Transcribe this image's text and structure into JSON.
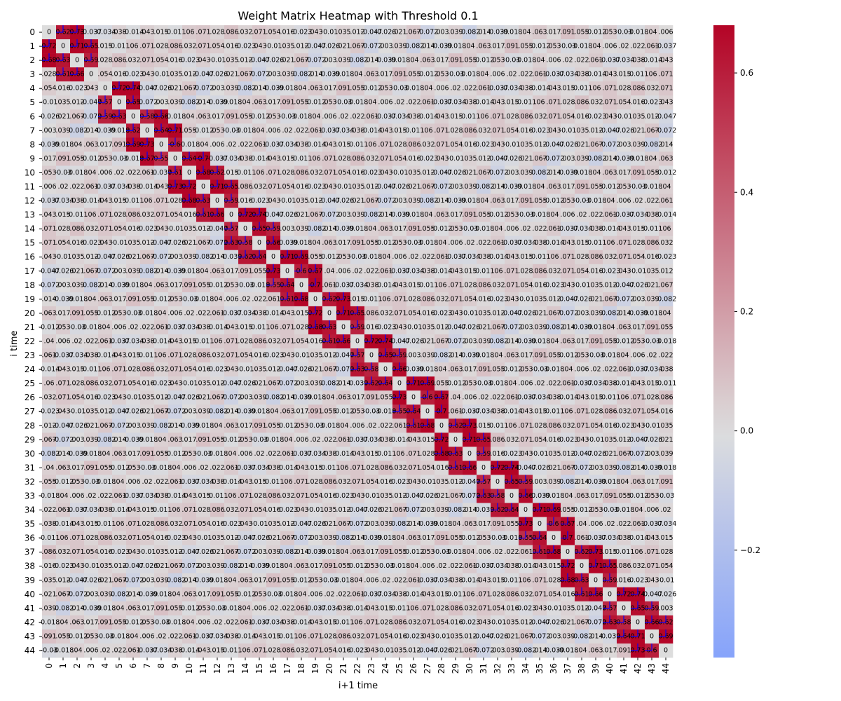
{
  "chart_data": {
    "type": "heatmap",
    "title": "Weight Matrix Heatmap with Threshold 0.1",
    "xlabel": "i+1 time",
    "ylabel": "i time",
    "n": 45,
    "row_labels": [
      "0",
      "1",
      "2",
      "3",
      "4",
      "5",
      "6",
      "7",
      "8",
      "9",
      "10",
      "11",
      "12",
      "13",
      "14",
      "15",
      "16",
      "17",
      "18",
      "19",
      "20",
      "21",
      "22",
      "23",
      "24",
      "25",
      "26",
      "27",
      "28",
      "29",
      "30",
      "31",
      "32",
      "33",
      "34",
      "35",
      "36",
      "37",
      "38",
      "39",
      "40",
      "41",
      "42",
      "43",
      "44"
    ],
    "col_labels": [
      "0",
      "1",
      "2",
      "3",
      "4",
      "5",
      "6",
      "7",
      "8",
      "9",
      "10",
      "11",
      "12",
      "13",
      "14",
      "15",
      "16",
      "17",
      "18",
      "19",
      "20",
      "21",
      "22",
      "23",
      "24",
      "25",
      "26",
      "27",
      "28",
      "29",
      "30",
      "31",
      "32",
      "33",
      "34",
      "35",
      "36",
      "37",
      "38",
      "39",
      "40",
      "41",
      "42",
      "43",
      "44"
    ],
    "colormap": "coolwarm",
    "vmin": -0.38,
    "vmax": 0.68,
    "center": 0.0,
    "colorbar_ticks": [
      -0.2,
      0.0,
      0.2,
      0.4,
      0.6
    ],
    "colorbar_tick_labels": [
      "−0.2",
      "0.0",
      "0.2",
      "0.4",
      "0.6"
    ],
    "threshold": 0.1,
    "threshold_line_color": "#0000ff",
    "band_blocks": [
      [
        0,
        3
      ],
      [
        4,
        6
      ],
      [
        6,
        9
      ],
      [
        9,
        13
      ],
      [
        13,
        16
      ],
      [
        16,
        19
      ],
      [
        19,
        22
      ],
      [
        22,
        25
      ],
      [
        25,
        28
      ],
      [
        28,
        31
      ],
      [
        31,
        34
      ],
      [
        34,
        37
      ],
      [
        37,
        40
      ],
      [
        40,
        44
      ]
    ],
    "band_values": [
      0.62,
      0.73,
      0.72,
      0.71,
      0.65,
      0.68,
      0.63,
      0.59,
      0.61,
      0.66,
      0.72,
      0.74,
      0.57,
      0.65,
      0.59,
      0.63,
      0.58,
      0.66,
      0.62,
      0.64,
      0.71,
      0.69,
      0.73,
      0.6,
      0.67,
      0.55,
      0.64,
      0.7,
      0.61,
      0.68
    ],
    "background_values": [
      -0.02,
      0.043,
      0.032,
      -0.035,
      0.003,
      0.063,
      0.018,
      -0.034,
      0.071,
      0.023,
      0.021,
      -0.039,
      0.012,
      0.022,
      0.015,
      -0.071,
      0.012,
      0.039,
      -0.017,
      0.04,
      0.038,
      -0.028,
      0.043,
      0.067,
      0.018,
      0.053,
      0.061,
      0.011,
      0.054,
      -0.047,
      0.082,
      0.091,
      0.006,
      0.014,
      0.086,
      -0.01,
      0.072,
      0.04,
      -0.03,
      0.037,
      0.06,
      0.016,
      0.026,
      0.014,
      0.055
    ],
    "diagonal_value": 0
  }
}
